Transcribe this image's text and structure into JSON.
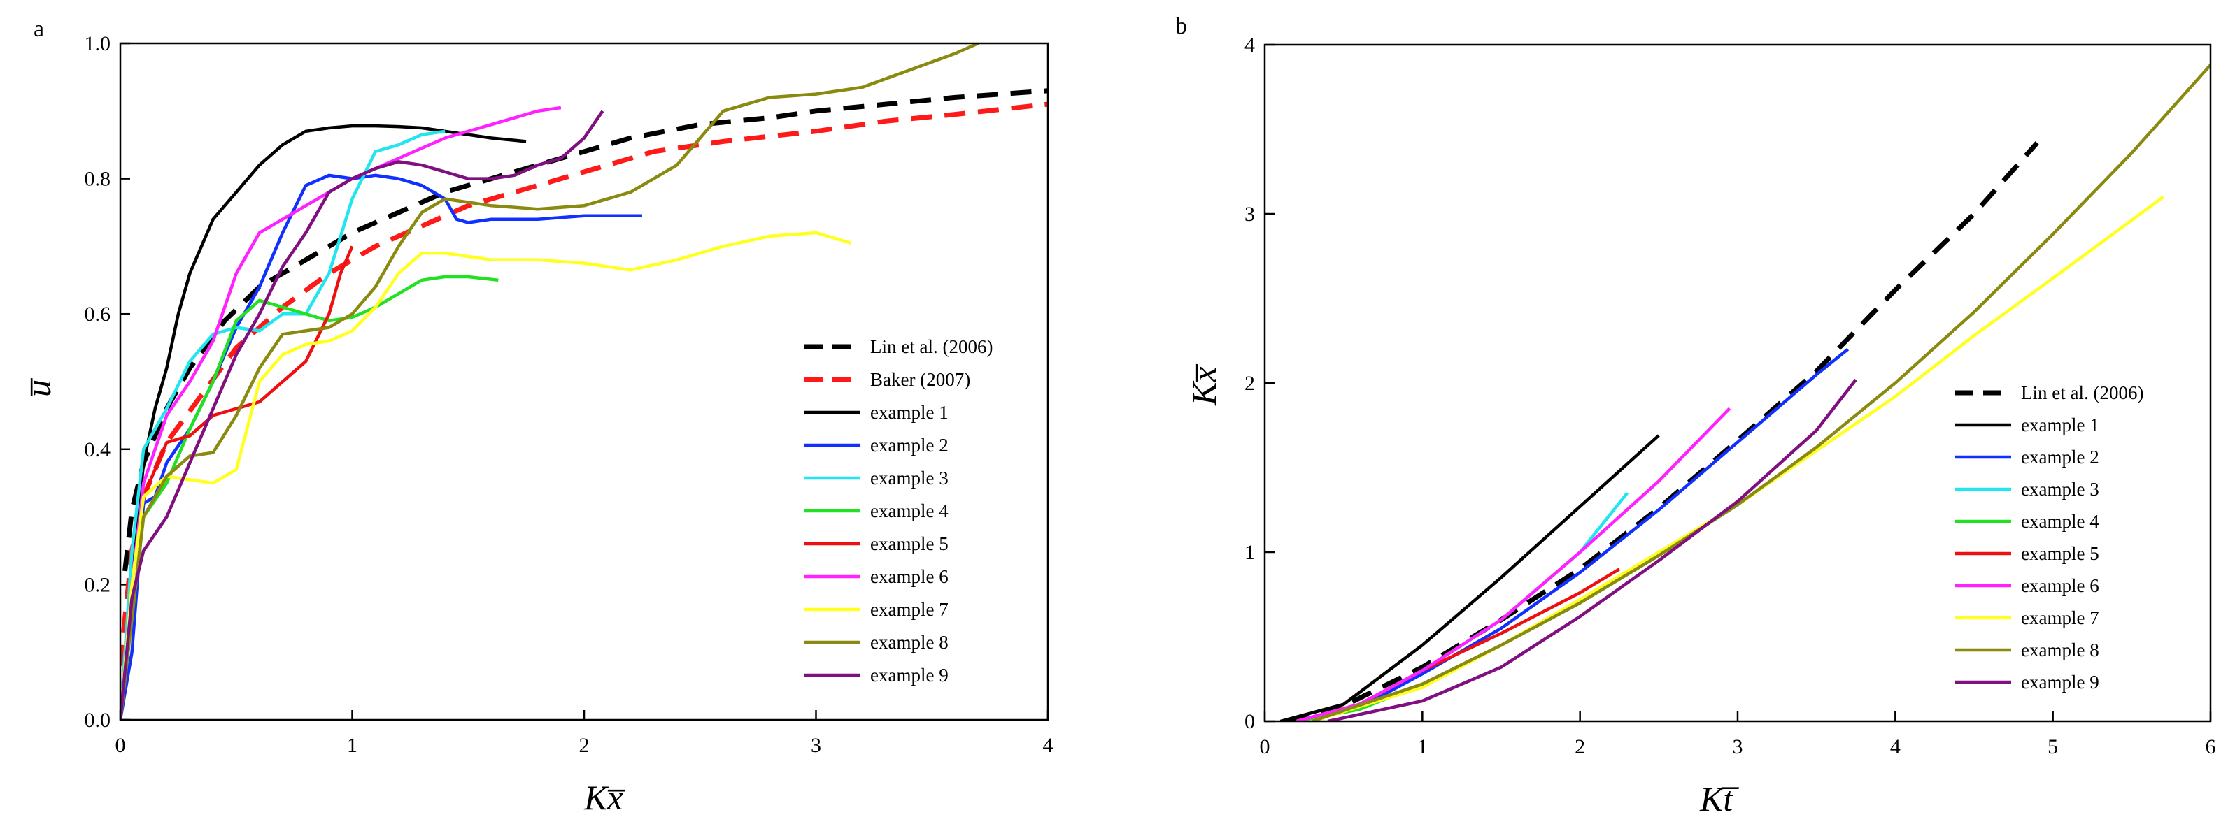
{
  "panels": {
    "a": "a",
    "b": "b"
  },
  "chart_data": [
    {
      "type": "line",
      "panel": "a",
      "xlabel": "Kx̅",
      "ylabel": "u̅",
      "xlim": [
        0,
        4
      ],
      "ylim": [
        0,
        1.0
      ],
      "xticks": [
        "0",
        "1",
        "2",
        "3",
        "4"
      ],
      "yticks": [
        "0.0",
        "0.2",
        "0.4",
        "0.6",
        "0.8",
        "1.0"
      ],
      "legend_position": "center-right",
      "series": [
        {
          "name": "Lin et al. (2006)",
          "color": "#000000",
          "dash": true,
          "x": [
            0.02,
            0.05,
            0.1,
            0.2,
            0.3,
            0.45,
            0.6,
            0.8,
            1.0,
            1.2,
            1.4,
            1.6,
            1.8,
            2.0,
            2.2,
            2.5,
            2.8,
            3.0,
            3.3,
            3.6,
            3.8,
            4.0
          ],
          "y": [
            0.22,
            0.31,
            0.38,
            0.46,
            0.52,
            0.59,
            0.64,
            0.68,
            0.72,
            0.75,
            0.78,
            0.8,
            0.82,
            0.84,
            0.86,
            0.88,
            0.89,
            0.9,
            0.91,
            0.92,
            0.925,
            0.93
          ]
        },
        {
          "name": "Baker (2007)",
          "color": "#ff1a1a",
          "dash": true,
          "x": [
            0.0,
            0.02,
            0.05,
            0.1,
            0.2,
            0.35,
            0.5,
            0.7,
            0.9,
            1.1,
            1.3,
            1.5,
            1.8,
            2.0,
            2.3,
            2.6,
            3.0,
            3.3,
            3.6,
            4.0
          ],
          "y": [
            0.08,
            0.15,
            0.25,
            0.33,
            0.41,
            0.48,
            0.55,
            0.61,
            0.66,
            0.7,
            0.73,
            0.76,
            0.79,
            0.81,
            0.84,
            0.855,
            0.87,
            0.885,
            0.895,
            0.91
          ]
        },
        {
          "name": "example 1",
          "color": "#000000",
          "dash": false,
          "x": [
            0.0,
            0.05,
            0.1,
            0.15,
            0.2,
            0.25,
            0.3,
            0.35,
            0.4,
            0.45,
            0.5,
            0.55,
            0.6,
            0.7,
            0.8,
            0.9,
            1.0,
            1.1,
            1.2,
            1.3,
            1.4,
            1.5,
            1.6,
            1.75
          ],
          "y": [
            0.0,
            0.2,
            0.38,
            0.46,
            0.52,
            0.6,
            0.66,
            0.7,
            0.74,
            0.76,
            0.78,
            0.8,
            0.82,
            0.85,
            0.87,
            0.875,
            0.878,
            0.878,
            0.877,
            0.875,
            0.87,
            0.865,
            0.86,
            0.855
          ]
        },
        {
          "name": "example 2",
          "color": "#1030ff",
          "dash": false,
          "x": [
            0.0,
            0.05,
            0.1,
            0.15,
            0.2,
            0.3,
            0.4,
            0.5,
            0.6,
            0.7,
            0.8,
            0.9,
            1.0,
            1.1,
            1.2,
            1.3,
            1.4,
            1.45,
            1.5,
            1.6,
            1.8,
            2.0,
            2.25
          ],
          "y": [
            0.0,
            0.1,
            0.32,
            0.33,
            0.38,
            0.43,
            0.5,
            0.58,
            0.64,
            0.72,
            0.79,
            0.805,
            0.8,
            0.805,
            0.8,
            0.79,
            0.77,
            0.74,
            0.735,
            0.74,
            0.74,
            0.745,
            0.745
          ]
        },
        {
          "name": "example 3",
          "color": "#22e5f0",
          "dash": false,
          "x": [
            0.0,
            0.05,
            0.1,
            0.2,
            0.3,
            0.4,
            0.5,
            0.6,
            0.7,
            0.8,
            0.9,
            1.0,
            1.1,
            1.2,
            1.3,
            1.4
          ],
          "y": [
            0.0,
            0.25,
            0.4,
            0.46,
            0.53,
            0.57,
            0.58,
            0.575,
            0.6,
            0.6,
            0.66,
            0.77,
            0.84,
            0.85,
            0.865,
            0.87
          ]
        },
        {
          "name": "example 4",
          "color": "#22e022",
          "dash": false,
          "x": [
            0.0,
            0.05,
            0.1,
            0.2,
            0.3,
            0.4,
            0.5,
            0.6,
            0.7,
            0.8,
            0.9,
            1.0,
            1.1,
            1.2,
            1.3,
            1.4,
            1.5,
            1.63
          ],
          "y": [
            0.0,
            0.15,
            0.3,
            0.35,
            0.43,
            0.5,
            0.59,
            0.62,
            0.61,
            0.6,
            0.59,
            0.595,
            0.61,
            0.63,
            0.65,
            0.655,
            0.655,
            0.65
          ]
        },
        {
          "name": "example 5",
          "color": "#ee1010",
          "dash": false,
          "x": [
            0.0,
            0.05,
            0.1,
            0.15,
            0.2,
            0.3,
            0.4,
            0.5,
            0.6,
            0.7,
            0.8,
            0.9,
            0.95,
            1.0
          ],
          "y": [
            0.0,
            0.2,
            0.33,
            0.37,
            0.41,
            0.42,
            0.45,
            0.46,
            0.47,
            0.5,
            0.53,
            0.6,
            0.66,
            0.7
          ]
        },
        {
          "name": "example 6",
          "color": "#ff22ff",
          "dash": false,
          "x": [
            0.0,
            0.05,
            0.1,
            0.2,
            0.3,
            0.4,
            0.5,
            0.6,
            0.7,
            0.8,
            0.9,
            1.0,
            1.2,
            1.4,
            1.6,
            1.8,
            1.9
          ],
          "y": [
            0.0,
            0.2,
            0.35,
            0.45,
            0.5,
            0.56,
            0.66,
            0.72,
            0.74,
            0.76,
            0.78,
            0.8,
            0.83,
            0.86,
            0.88,
            0.9,
            0.905
          ]
        },
        {
          "name": "example 7",
          "color": "#ffff22",
          "dash": false,
          "x": [
            0.0,
            0.05,
            0.1,
            0.2,
            0.3,
            0.4,
            0.5,
            0.6,
            0.7,
            0.8,
            0.9,
            1.0,
            1.1,
            1.2,
            1.3,
            1.4,
            1.6,
            1.8,
            2.0,
            2.2,
            2.4,
            2.6,
            2.8,
            3.0,
            3.15
          ],
          "y": [
            0.0,
            0.2,
            0.33,
            0.36,
            0.355,
            0.35,
            0.37,
            0.5,
            0.54,
            0.555,
            0.56,
            0.575,
            0.61,
            0.66,
            0.69,
            0.69,
            0.68,
            0.68,
            0.675,
            0.665,
            0.68,
            0.7,
            0.715,
            0.72,
            0.705
          ]
        },
        {
          "name": "example 8",
          "color": "#8a8a10",
          "dash": false,
          "x": [
            0.0,
            0.05,
            0.1,
            0.2,
            0.3,
            0.4,
            0.5,
            0.6,
            0.7,
            0.8,
            0.9,
            1.0,
            1.1,
            1.2,
            1.3,
            1.4,
            1.6,
            1.8,
            2.0,
            2.2,
            2.4,
            2.5,
            2.6,
            2.8,
            3.0,
            3.2,
            3.4,
            3.6,
            3.7
          ],
          "y": [
            0.0,
            0.15,
            0.3,
            0.36,
            0.39,
            0.395,
            0.45,
            0.52,
            0.57,
            0.575,
            0.58,
            0.6,
            0.64,
            0.7,
            0.75,
            0.77,
            0.76,
            0.755,
            0.76,
            0.78,
            0.82,
            0.86,
            0.9,
            0.92,
            0.925,
            0.935,
            0.96,
            0.985,
            1.0
          ]
        },
        {
          "name": "example 9",
          "color": "#800f80",
          "dash": false,
          "x": [
            0.0,
            0.05,
            0.1,
            0.2,
            0.3,
            0.4,
            0.5,
            0.6,
            0.7,
            0.8,
            0.9,
            1.0,
            1.1,
            1.2,
            1.3,
            1.4,
            1.5,
            1.6,
            1.7,
            1.8,
            1.9,
            2.0,
            2.08
          ],
          "y": [
            0.0,
            0.18,
            0.25,
            0.3,
            0.38,
            0.46,
            0.54,
            0.6,
            0.67,
            0.72,
            0.78,
            0.8,
            0.815,
            0.825,
            0.82,
            0.81,
            0.8,
            0.8,
            0.805,
            0.82,
            0.83,
            0.86,
            0.9
          ]
        }
      ]
    },
    {
      "type": "line",
      "panel": "b",
      "xlabel": "Kt̅",
      "ylabel": "Kx̅",
      "xlim": [
        0,
        6
      ],
      "ylim": [
        0,
        4
      ],
      "xticks": [
        "0",
        "1",
        "2",
        "3",
        "4",
        "5",
        "6"
      ],
      "yticks": [
        "0",
        "1",
        "2",
        "3",
        "4"
      ],
      "legend_position": "center-right",
      "series": [
        {
          "name": "Lin et al. (2006)",
          "color": "#000000",
          "dash": true,
          "x": [
            0.15,
            0.5,
            1.0,
            1.5,
            2.0,
            2.5,
            3.0,
            3.5,
            4.0,
            4.5,
            4.9
          ],
          "y": [
            0.0,
            0.09,
            0.32,
            0.6,
            0.9,
            1.26,
            1.66,
            2.07,
            2.55,
            3.0,
            3.42
          ]
        },
        {
          "name": "example 1",
          "color": "#000000",
          "dash": false,
          "x": [
            0.1,
            0.5,
            1.0,
            1.5,
            2.0,
            2.5
          ],
          "y": [
            0.0,
            0.1,
            0.45,
            0.85,
            1.27,
            1.69
          ]
        },
        {
          "name": "example 2",
          "color": "#1030ff",
          "dash": false,
          "x": [
            0.2,
            0.6,
            1.0,
            1.5,
            2.0,
            2.5,
            3.0,
            3.5,
            3.7
          ],
          "y": [
            0.0,
            0.08,
            0.28,
            0.55,
            0.88,
            1.25,
            1.65,
            2.05,
            2.2
          ]
        },
        {
          "name": "example 3",
          "color": "#22e5f0",
          "dash": false,
          "x": [
            0.2,
            0.6,
            1.0,
            1.5,
            2.0,
            2.3
          ],
          "y": [
            0.0,
            0.1,
            0.3,
            0.6,
            1.0,
            1.35
          ]
        },
        {
          "name": "example 4",
          "color": "#22e022",
          "dash": false,
          "x": [
            0.2,
            0.6,
            1.0,
            1.5,
            2.0,
            2.5,
            3.0,
            3.45
          ],
          "y": [
            0.0,
            0.07,
            0.22,
            0.45,
            0.7,
            0.98,
            1.28,
            1.58
          ]
        },
        {
          "name": "example 5",
          "color": "#ee1010",
          "dash": false,
          "x": [
            0.2,
            0.6,
            1.0,
            1.5,
            2.0,
            2.25
          ],
          "y": [
            0.0,
            0.1,
            0.3,
            0.52,
            0.76,
            0.9
          ]
        },
        {
          "name": "example 6",
          "color": "#ff22ff",
          "dash": false,
          "x": [
            0.2,
            0.6,
            1.0,
            1.5,
            2.0,
            2.5,
            2.95
          ],
          "y": [
            0.0,
            0.1,
            0.3,
            0.6,
            1.0,
            1.42,
            1.85
          ]
        },
        {
          "name": "example 7",
          "color": "#ffff22",
          "dash": false,
          "x": [
            0.3,
            1.0,
            1.5,
            2.0,
            2.5,
            3.0,
            3.5,
            4.0,
            4.5,
            5.0,
            5.7
          ],
          "y": [
            0.0,
            0.2,
            0.45,
            0.72,
            1.0,
            1.28,
            1.6,
            1.92,
            2.28,
            2.62,
            3.1
          ]
        },
        {
          "name": "example 8",
          "color": "#8a8a10",
          "dash": false,
          "x": [
            0.3,
            1.0,
            1.5,
            2.0,
            2.5,
            3.0,
            3.5,
            4.0,
            4.5,
            5.0,
            5.5,
            6.0
          ],
          "y": [
            0.0,
            0.22,
            0.45,
            0.7,
            0.98,
            1.28,
            1.62,
            2.0,
            2.42,
            2.88,
            3.36,
            3.88
          ]
        },
        {
          "name": "example 9",
          "color": "#800f80",
          "dash": false,
          "x": [
            0.4,
            1.0,
            1.5,
            2.0,
            2.5,
            3.0,
            3.5,
            3.75
          ],
          "y": [
            0.0,
            0.12,
            0.32,
            0.62,
            0.95,
            1.3,
            1.72,
            2.02
          ]
        }
      ]
    }
  ]
}
